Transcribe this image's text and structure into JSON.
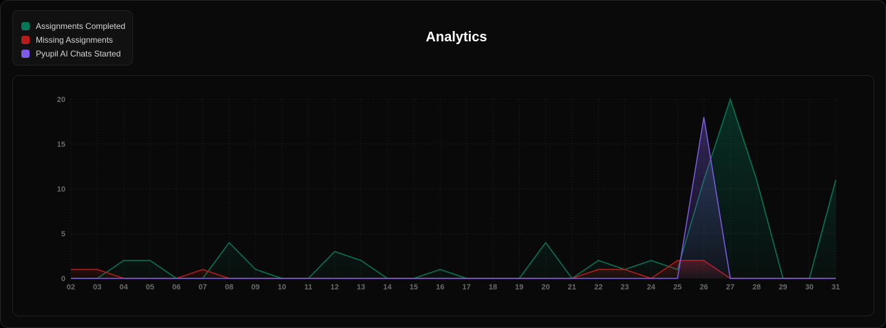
{
  "chart_data": {
    "type": "area",
    "title": "Analytics",
    "xlabel": "",
    "ylabel": "",
    "x": [
      "02",
      "03",
      "04",
      "05",
      "06",
      "07",
      "08",
      "09",
      "10",
      "11",
      "12",
      "13",
      "14",
      "15",
      "16",
      "17",
      "18",
      "19",
      "20",
      "21",
      "22",
      "23",
      "24",
      "25",
      "26",
      "27",
      "28",
      "29",
      "30",
      "31"
    ],
    "ylim": [
      0,
      20
    ],
    "yticks": [
      "0",
      "5",
      "10",
      "15",
      "20"
    ],
    "grid": true,
    "legend_position": "top-left",
    "series": [
      {
        "name": "Assignments Completed",
        "color": "#047857",
        "values": [
          0,
          0,
          2,
          2,
          0,
          0,
          4,
          1,
          0,
          0,
          3,
          2,
          0,
          0,
          1,
          0,
          0,
          0,
          4,
          0,
          2,
          1,
          2,
          1,
          11,
          20,
          11,
          0,
          0,
          11
        ]
      },
      {
        "name": "Missing Assignments",
        "color": "#b91c1c",
        "values": [
          1,
          1,
          0,
          0,
          0,
          1,
          0,
          0,
          0,
          0,
          0,
          0,
          0,
          0,
          0,
          0,
          0,
          0,
          0,
          0,
          1,
          1,
          0,
          2,
          2,
          0,
          0,
          0,
          0,
          0
        ]
      },
      {
        "name": "Pyupil AI Chats Started",
        "color": "#7c5ce6",
        "values": [
          0,
          0,
          0,
          0,
          0,
          0,
          0,
          0,
          0,
          0,
          0,
          0,
          0,
          0,
          0,
          0,
          0,
          0,
          0,
          0,
          0,
          0,
          0,
          0,
          18,
          0,
          0,
          0,
          0,
          0
        ]
      }
    ]
  }
}
